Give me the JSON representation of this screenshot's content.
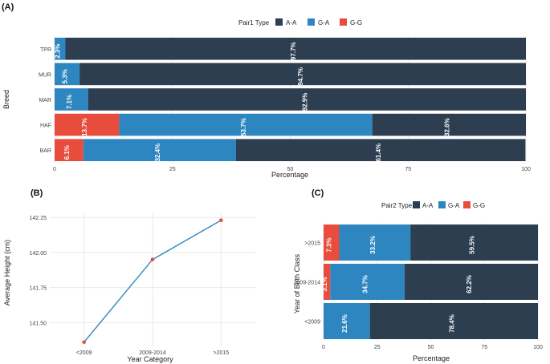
{
  "colors": {
    "AA": "#2c3e50",
    "GA": "#2e86c1",
    "GG": "#e74c3c",
    "line": "#3a8fc4",
    "point": "#e74c3c"
  },
  "chart_data": [
    {
      "panel": "(A)",
      "type": "bar",
      "orientation": "horizontal-stacked",
      "legend_title": "Pair1 Type",
      "legend": [
        "A-A",
        "G-A",
        "G-G"
      ],
      "xlabel": "Percentage",
      "ylabel": "Breed",
      "xlim": [
        0,
        100
      ],
      "xticks": [
        "0",
        "25",
        "50",
        "75",
        "100"
      ],
      "categories": [
        "TPR",
        "MUR",
        "MAR",
        "HAF",
        "BAR"
      ],
      "series": [
        {
          "name": "G-G",
          "values": [
            0,
            0,
            0,
            13.7,
            6.1
          ],
          "labels": [
            "",
            "",
            "",
            "13.7%",
            "6.1%"
          ]
        },
        {
          "name": "G-A",
          "values": [
            2.3,
            5.3,
            7.1,
            53.7,
            32.4
          ],
          "labels": [
            "2.3%",
            "5.3%",
            "7.1%",
            "53.7%",
            "32.4%"
          ]
        },
        {
          "name": "A-A",
          "values": [
            97.7,
            94.7,
            92.9,
            32.6,
            61.4
          ],
          "labels": [
            "97.7%",
            "94.7%",
            "92.9%",
            "32.6%",
            "61.4%"
          ]
        }
      ]
    },
    {
      "panel": "(B)",
      "type": "line",
      "xlabel": "Year Category",
      "ylabel": "Average Height (cm)",
      "categories": [
        "<2009",
        "2009-2014",
        ">2015"
      ],
      "values": [
        141.36,
        141.95,
        142.23
      ],
      "ylim": [
        141.33,
        142.28
      ],
      "yticks": [
        "141.50",
        "141.75",
        "142.00",
        "142.25"
      ]
    },
    {
      "panel": "(C)",
      "type": "bar",
      "orientation": "horizontal-stacked",
      "legend_title": "Pair2 Type",
      "legend": [
        "A-A",
        "G-A",
        "G-G"
      ],
      "xlabel": "Percentage",
      "ylabel": "Year of Birth Class",
      "xlim": [
        0,
        100
      ],
      "xticks": [
        "0",
        "25",
        "50",
        "75",
        "100"
      ],
      "categories": [
        ">2015",
        "2009-2014",
        "<2009"
      ],
      "series": [
        {
          "name": "G-G",
          "values": [
            7.3,
            3.1,
            0
          ],
          "labels": [
            "7.3%",
            "3.1%",
            ""
          ]
        },
        {
          "name": "G-A",
          "values": [
            33.2,
            34.7,
            21.6
          ],
          "labels": [
            "33.2%",
            "34.7%",
            "21.6%"
          ]
        },
        {
          "name": "A-A",
          "values": [
            59.5,
            62.2,
            78.4
          ],
          "labels": [
            "59.5%",
            "62.2%",
            "78.4%"
          ]
        }
      ]
    }
  ]
}
